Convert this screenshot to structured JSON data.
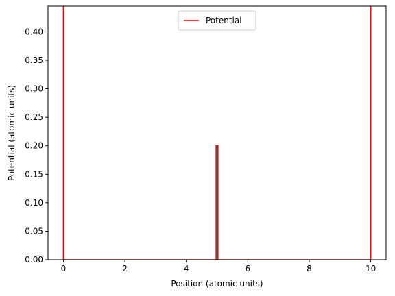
{
  "chart_data": {
    "type": "line",
    "title": "",
    "xlabel": "Position (atomic units)",
    "ylabel": "Potential (atomic units)",
    "xlim": [
      -0.5,
      10.5
    ],
    "ylim": [
      0.0,
      0.445
    ],
    "xticks": [
      0,
      2,
      4,
      6,
      8,
      10
    ],
    "xtick_labels": [
      "0",
      "2",
      "4",
      "6",
      "8",
      "10"
    ],
    "yticks": [
      0.0,
      0.05,
      0.1,
      0.15,
      0.2,
      0.25,
      0.3,
      0.35,
      0.4
    ],
    "ytick_labels": [
      "0.00",
      "0.05",
      "0.10",
      "0.15",
      "0.20",
      "0.25",
      "0.30",
      "0.35",
      "0.40"
    ],
    "grid": false,
    "legend_position": "top-center",
    "series": [
      {
        "name": "Potential",
        "color": "#ff0000",
        "x": [
          0,
          0,
          0,
          4.97,
          4.97,
          5.03,
          5.03,
          10,
          10,
          10
        ],
        "y": [
          0.445,
          0,
          0,
          0,
          0.2,
          0.2,
          0,
          0,
          0,
          0.445
        ]
      }
    ]
  }
}
